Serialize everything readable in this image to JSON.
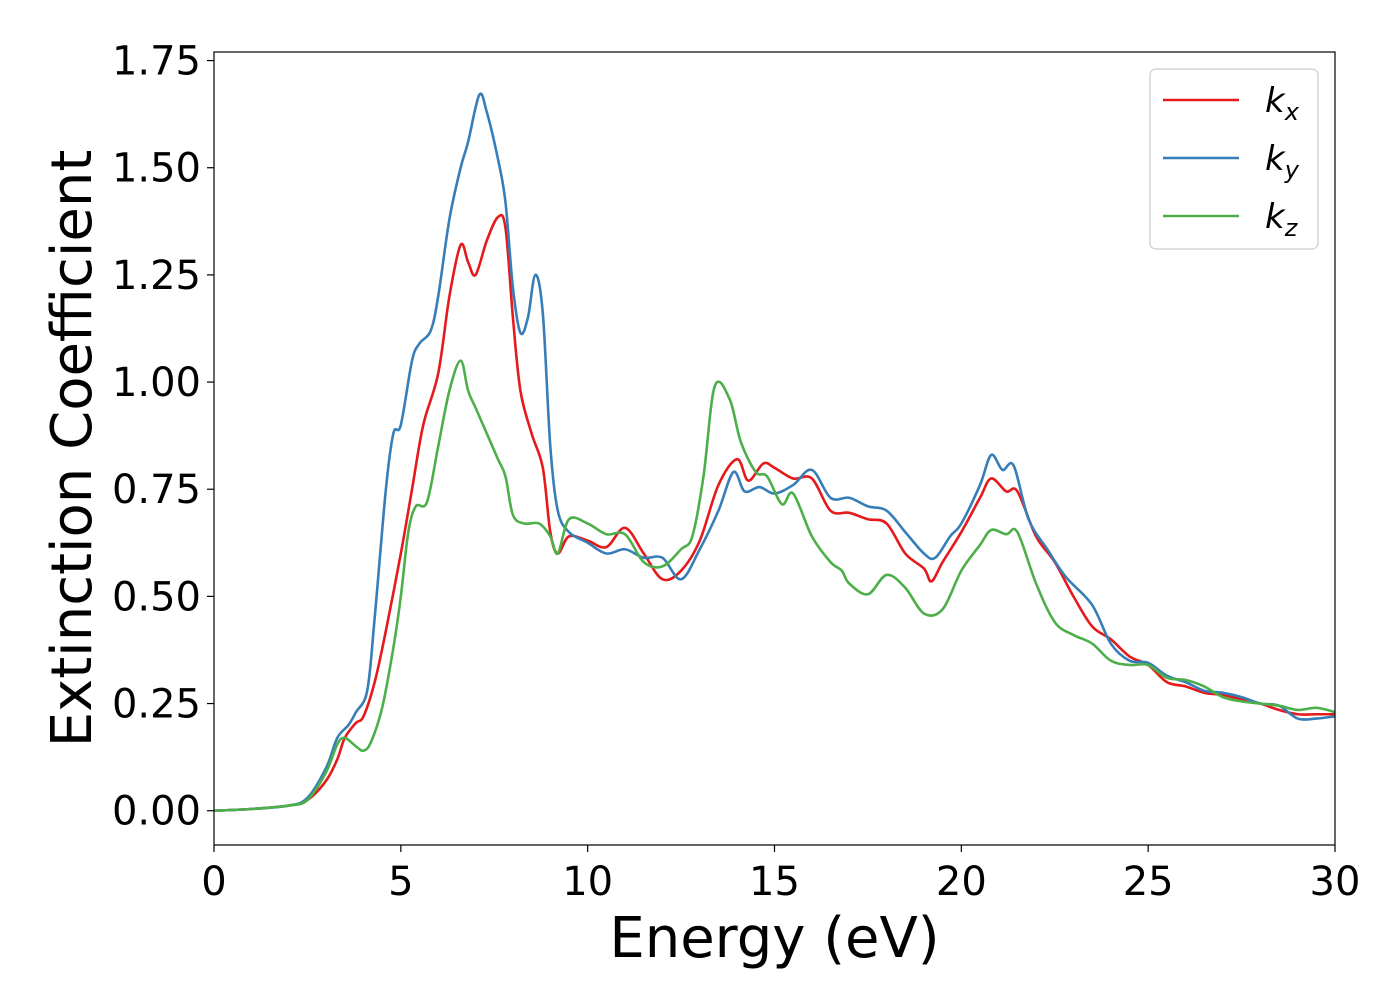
{
  "chart_data": {
    "type": "line",
    "title": "",
    "xlabel": "Energy (eV)",
    "ylabel": "Extinction Coefficient",
    "xlim": [
      0,
      30
    ],
    "ylim": [
      -0.08,
      1.77
    ],
    "xticks": [
      0,
      5,
      10,
      15,
      20,
      25,
      30
    ],
    "xtick_labels": [
      "0",
      "5",
      "10",
      "15",
      "20",
      "25",
      "30"
    ],
    "yticks": [
      0,
      0.25,
      0.5,
      0.75,
      1.0,
      1.25,
      1.5,
      1.75
    ],
    "ytick_labels": [
      "0.00",
      "0.25",
      "0.50",
      "0.75",
      "1.00",
      "1.25",
      "1.50",
      "1.75"
    ],
    "grid": false,
    "legend_position": "top-right",
    "series": [
      {
        "name": "k_x",
        "label_base": "k",
        "label_sub": "x",
        "color": "#e41a1c",
        "points": [
          [
            0,
            0
          ],
          [
            1,
            0.004
          ],
          [
            2,
            0.012
          ],
          [
            2.5,
            0.025
          ],
          [
            3,
            0.07
          ],
          [
            3.3,
            0.12
          ],
          [
            3.5,
            0.17
          ],
          [
            3.8,
            0.205
          ],
          [
            4,
            0.22
          ],
          [
            4.3,
            0.3
          ],
          [
            4.6,
            0.42
          ],
          [
            5,
            0.6
          ],
          [
            5.3,
            0.75
          ],
          [
            5.6,
            0.9
          ],
          [
            6,
            1.02
          ],
          [
            6.3,
            1.2
          ],
          [
            6.6,
            1.32
          ],
          [
            6.8,
            1.28
          ],
          [
            7,
            1.25
          ],
          [
            7.3,
            1.33
          ],
          [
            7.6,
            1.385
          ],
          [
            7.8,
            1.36
          ],
          [
            8,
            1.15
          ],
          [
            8.2,
            0.98
          ],
          [
            8.5,
            0.88
          ],
          [
            8.8,
            0.8
          ],
          [
            9,
            0.65
          ],
          [
            9.2,
            0.6
          ],
          [
            9.5,
            0.64
          ],
          [
            10,
            0.63
          ],
          [
            10.5,
            0.615
          ],
          [
            11,
            0.66
          ],
          [
            11.5,
            0.6
          ],
          [
            12,
            0.54
          ],
          [
            12.5,
            0.56
          ],
          [
            13,
            0.63
          ],
          [
            13.5,
            0.76
          ],
          [
            14,
            0.82
          ],
          [
            14.3,
            0.77
          ],
          [
            14.7,
            0.81
          ],
          [
            15,
            0.8
          ],
          [
            15.5,
            0.775
          ],
          [
            16,
            0.775
          ],
          [
            16.5,
            0.7
          ],
          [
            17,
            0.695
          ],
          [
            17.5,
            0.68
          ],
          [
            18,
            0.67
          ],
          [
            18.5,
            0.6
          ],
          [
            19,
            0.565
          ],
          [
            19.2,
            0.535
          ],
          [
            19.5,
            0.58
          ],
          [
            20,
            0.65
          ],
          [
            20.5,
            0.73
          ],
          [
            20.8,
            0.775
          ],
          [
            21.2,
            0.745
          ],
          [
            21.5,
            0.745
          ],
          [
            22,
            0.64
          ],
          [
            22.5,
            0.58
          ],
          [
            23,
            0.5
          ],
          [
            23.5,
            0.43
          ],
          [
            24,
            0.4
          ],
          [
            24.5,
            0.36
          ],
          [
            25,
            0.34
          ],
          [
            25.5,
            0.3
          ],
          [
            26,
            0.29
          ],
          [
            26.5,
            0.275
          ],
          [
            27,
            0.27
          ],
          [
            27.5,
            0.26
          ],
          [
            28,
            0.25
          ],
          [
            28.5,
            0.235
          ],
          [
            29,
            0.225
          ],
          [
            29.5,
            0.225
          ],
          [
            30,
            0.225
          ]
        ]
      },
      {
        "name": "k_y",
        "label_base": "k",
        "label_sub": "y",
        "color": "#377eb8",
        "points": [
          [
            0,
            0
          ],
          [
            1,
            0.004
          ],
          [
            2,
            0.012
          ],
          [
            2.5,
            0.03
          ],
          [
            3,
            0.1
          ],
          [
            3.3,
            0.17
          ],
          [
            3.6,
            0.2
          ],
          [
            3.8,
            0.23
          ],
          [
            4.1,
            0.28
          ],
          [
            4.3,
            0.45
          ],
          [
            4.6,
            0.75
          ],
          [
            4.8,
            0.88
          ],
          [
            5,
            0.9
          ],
          [
            5.3,
            1.05
          ],
          [
            5.5,
            1.09
          ],
          [
            5.8,
            1.12
          ],
          [
            6,
            1.2
          ],
          [
            6.3,
            1.38
          ],
          [
            6.6,
            1.5
          ],
          [
            6.8,
            1.56
          ],
          [
            7.1,
            1.67
          ],
          [
            7.3,
            1.63
          ],
          [
            7.6,
            1.52
          ],
          [
            7.8,
            1.42
          ],
          [
            8,
            1.22
          ],
          [
            8.2,
            1.115
          ],
          [
            8.4,
            1.15
          ],
          [
            8.6,
            1.25
          ],
          [
            8.8,
            1.16
          ],
          [
            9,
            0.85
          ],
          [
            9.2,
            0.7
          ],
          [
            9.5,
            0.65
          ],
          [
            10,
            0.625
          ],
          [
            10.5,
            0.6
          ],
          [
            11,
            0.61
          ],
          [
            11.5,
            0.59
          ],
          [
            12,
            0.59
          ],
          [
            12.5,
            0.54
          ],
          [
            13,
            0.61
          ],
          [
            13.5,
            0.7
          ],
          [
            13.9,
            0.79
          ],
          [
            14.2,
            0.745
          ],
          [
            14.6,
            0.755
          ],
          [
            15,
            0.74
          ],
          [
            15.5,
            0.76
          ],
          [
            16,
            0.795
          ],
          [
            16.5,
            0.73
          ],
          [
            17,
            0.73
          ],
          [
            17.5,
            0.71
          ],
          [
            18,
            0.7
          ],
          [
            18.5,
            0.65
          ],
          [
            19,
            0.6
          ],
          [
            19.3,
            0.59
          ],
          [
            19.7,
            0.64
          ],
          [
            20,
            0.67
          ],
          [
            20.5,
            0.76
          ],
          [
            20.8,
            0.83
          ],
          [
            21.1,
            0.795
          ],
          [
            21.4,
            0.805
          ],
          [
            21.8,
            0.68
          ],
          [
            22.3,
            0.61
          ],
          [
            22.8,
            0.545
          ],
          [
            23.5,
            0.48
          ],
          [
            24,
            0.39
          ],
          [
            24.5,
            0.35
          ],
          [
            25,
            0.345
          ],
          [
            25.5,
            0.315
          ],
          [
            26,
            0.3
          ],
          [
            26.5,
            0.28
          ],
          [
            27,
            0.275
          ],
          [
            27.5,
            0.265
          ],
          [
            28,
            0.25
          ],
          [
            28.5,
            0.245
          ],
          [
            29,
            0.215
          ],
          [
            29.5,
            0.215
          ],
          [
            30,
            0.22
          ]
        ]
      },
      {
        "name": "k_z",
        "label_base": "k",
        "label_sub": "z",
        "color": "#4daf4a",
        "points": [
          [
            0,
            0
          ],
          [
            1,
            0.004
          ],
          [
            2,
            0.012
          ],
          [
            2.5,
            0.025
          ],
          [
            3,
            0.09
          ],
          [
            3.3,
            0.155
          ],
          [
            3.5,
            0.17
          ],
          [
            3.8,
            0.15
          ],
          [
            4,
            0.14
          ],
          [
            4.2,
            0.16
          ],
          [
            4.5,
            0.24
          ],
          [
            4.8,
            0.38
          ],
          [
            5,
            0.5
          ],
          [
            5.2,
            0.65
          ],
          [
            5.4,
            0.71
          ],
          [
            5.7,
            0.72
          ],
          [
            6,
            0.85
          ],
          [
            6.3,
            0.98
          ],
          [
            6.6,
            1.05
          ],
          [
            6.8,
            0.98
          ],
          [
            7,
            0.94
          ],
          [
            7.3,
            0.88
          ],
          [
            7.6,
            0.82
          ],
          [
            7.8,
            0.78
          ],
          [
            8,
            0.69
          ],
          [
            8.3,
            0.67
          ],
          [
            8.7,
            0.67
          ],
          [
            9,
            0.64
          ],
          [
            9.2,
            0.6
          ],
          [
            9.5,
            0.68
          ],
          [
            10,
            0.67
          ],
          [
            10.5,
            0.645
          ],
          [
            11,
            0.645
          ],
          [
            11.5,
            0.58
          ],
          [
            12,
            0.57
          ],
          [
            12.5,
            0.61
          ],
          [
            12.8,
            0.64
          ],
          [
            13.1,
            0.78
          ],
          [
            13.4,
            0.99
          ],
          [
            13.8,
            0.96
          ],
          [
            14.1,
            0.86
          ],
          [
            14.5,
            0.79
          ],
          [
            14.8,
            0.78
          ],
          [
            15.2,
            0.715
          ],
          [
            15.5,
            0.74
          ],
          [
            16,
            0.64
          ],
          [
            16.5,
            0.58
          ],
          [
            16.8,
            0.56
          ],
          [
            17,
            0.53
          ],
          [
            17.5,
            0.505
          ],
          [
            18,
            0.55
          ],
          [
            18.5,
            0.52
          ],
          [
            19,
            0.46
          ],
          [
            19.5,
            0.47
          ],
          [
            20,
            0.56
          ],
          [
            20.5,
            0.62
          ],
          [
            20.8,
            0.655
          ],
          [
            21.2,
            0.645
          ],
          [
            21.5,
            0.65
          ],
          [
            22,
            0.53
          ],
          [
            22.5,
            0.44
          ],
          [
            23,
            0.41
          ],
          [
            23.5,
            0.39
          ],
          [
            24,
            0.35
          ],
          [
            24.5,
            0.34
          ],
          [
            25,
            0.34
          ],
          [
            25.5,
            0.31
          ],
          [
            26,
            0.305
          ],
          [
            26.5,
            0.29
          ],
          [
            27,
            0.265
          ],
          [
            27.5,
            0.255
          ],
          [
            28,
            0.25
          ],
          [
            28.5,
            0.245
          ],
          [
            29,
            0.235
          ],
          [
            29.5,
            0.24
          ],
          [
            30,
            0.23
          ]
        ]
      }
    ]
  }
}
